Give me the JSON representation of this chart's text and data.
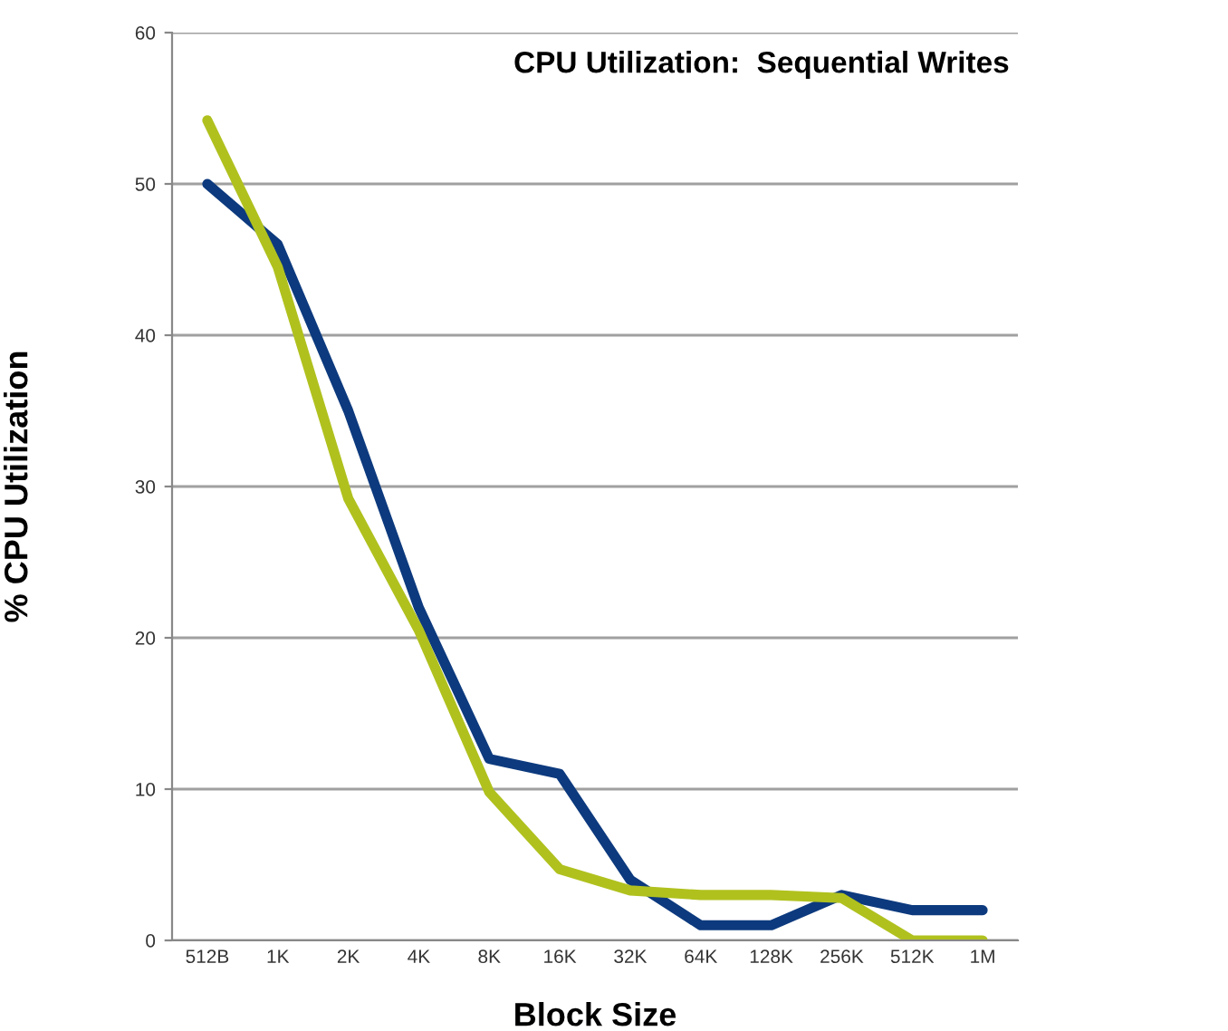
{
  "chart_data": {
    "type": "line",
    "title": "CPU Utilization:  Sequential Writes",
    "xlabel": "Block Size",
    "ylabel": "% CPU Utilization",
    "categories": [
      "512B",
      "1K",
      "2K",
      "4K",
      "8K",
      "16K",
      "32K",
      "64K",
      "128K",
      "256K",
      "512K",
      "1M"
    ],
    "series": [
      {
        "color": "#0d3a7e",
        "values": [
          50,
          46,
          35,
          22,
          12,
          11,
          4,
          1,
          1,
          3,
          2,
          2
        ]
      },
      {
        "color": "#b0c11e",
        "values": [
          54.2,
          44.5,
          29.2,
          20.5,
          9.8,
          4.7,
          3.3,
          3,
          3,
          2.8,
          0,
          0
        ]
      }
    ],
    "ylim": [
      0,
      60
    ],
    "yticks": [
      0,
      10,
      20,
      30,
      40,
      50,
      60
    ],
    "grid": "y",
    "marker": "none",
    "line_style": "solid"
  }
}
